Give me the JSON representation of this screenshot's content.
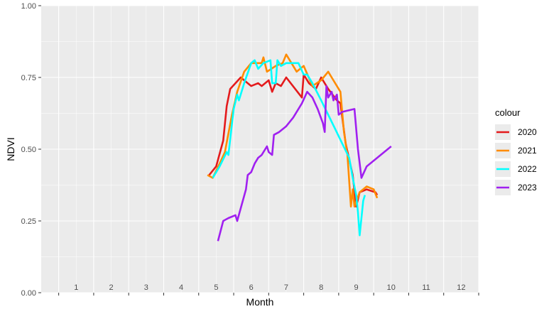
{
  "chart_data": {
    "type": "line",
    "xlabel": "Month",
    "ylabel": "NDVI",
    "xlim": [
      0,
      12.5
    ],
    "ylim": [
      0,
      1
    ],
    "x_ticks": [
      "1",
      "2",
      "3",
      "4",
      "5",
      "6",
      "7",
      "8",
      "9",
      "10",
      "11",
      "12"
    ],
    "y_ticks": [
      "0.00",
      "0.25",
      "0.50",
      "0.75",
      "1.00"
    ],
    "grid": true,
    "panel_background": "#EBEBEB",
    "grid_color": "#FFFFFF",
    "legend": {
      "title": "colour",
      "position": "right"
    },
    "series": [
      {
        "name": "2020",
        "color": "#E41A1C",
        "points": [
          [
            4.8,
            0.41
          ],
          [
            5.0,
            0.44
          ],
          [
            5.2,
            0.53
          ],
          [
            5.3,
            0.65
          ],
          [
            5.4,
            0.71
          ],
          [
            5.7,
            0.75
          ],
          [
            6.0,
            0.72
          ],
          [
            6.2,
            0.73
          ],
          [
            6.3,
            0.72
          ],
          [
            6.5,
            0.74
          ],
          [
            6.6,
            0.7
          ],
          [
            6.7,
            0.73
          ],
          [
            6.85,
            0.72
          ],
          [
            7.0,
            0.75
          ],
          [
            7.45,
            0.68
          ],
          [
            7.5,
            0.76
          ],
          [
            7.65,
            0.73
          ],
          [
            7.85,
            0.71
          ],
          [
            8.0,
            0.75
          ],
          [
            8.2,
            0.71
          ],
          [
            8.45,
            0.67
          ],
          [
            8.55,
            0.66
          ],
          [
            8.7,
            0.52
          ],
          [
            8.9,
            0.41
          ],
          [
            9.0,
            0.3
          ],
          [
            9.1,
            0.35
          ],
          [
            9.3,
            0.36
          ],
          [
            9.55,
            0.35
          ],
          [
            9.6,
            0.34
          ]
        ]
      },
      {
        "name": "2021",
        "color": "#FF8C00",
        "points": [
          [
            4.75,
            0.41
          ],
          [
            4.9,
            0.4
          ],
          [
            5.1,
            0.45
          ],
          [
            5.25,
            0.49
          ],
          [
            5.45,
            0.62
          ],
          [
            5.6,
            0.7
          ],
          [
            5.8,
            0.77
          ],
          [
            6.0,
            0.8
          ],
          [
            6.3,
            0.8
          ],
          [
            6.35,
            0.82
          ],
          [
            6.45,
            0.77
          ],
          [
            6.7,
            0.79
          ],
          [
            6.9,
            0.8
          ],
          [
            7.0,
            0.83
          ],
          [
            7.15,
            0.8
          ],
          [
            7.3,
            0.77
          ],
          [
            7.5,
            0.79
          ],
          [
            7.75,
            0.72
          ],
          [
            8.0,
            0.74
          ],
          [
            8.2,
            0.77
          ],
          [
            8.3,
            0.75
          ],
          [
            8.55,
            0.7
          ],
          [
            8.65,
            0.56
          ],
          [
            8.75,
            0.48
          ],
          [
            8.85,
            0.3
          ],
          [
            8.9,
            0.36
          ],
          [
            8.95,
            0.3
          ],
          [
            9.1,
            0.35
          ],
          [
            9.3,
            0.37
          ],
          [
            9.5,
            0.36
          ],
          [
            9.6,
            0.33
          ]
        ]
      },
      {
        "name": "2022",
        "color": "#00FFFF",
        "points": [
          [
            4.9,
            0.4
          ],
          [
            5.1,
            0.44
          ],
          [
            5.3,
            0.49
          ],
          [
            5.35,
            0.48
          ],
          [
            5.5,
            0.64
          ],
          [
            5.6,
            0.69
          ],
          [
            5.65,
            0.67
          ],
          [
            5.8,
            0.73
          ],
          [
            6.0,
            0.8
          ],
          [
            6.1,
            0.81
          ],
          [
            6.2,
            0.78
          ],
          [
            6.35,
            0.8
          ],
          [
            6.55,
            0.81
          ],
          [
            6.6,
            0.73
          ],
          [
            6.7,
            0.73
          ],
          [
            6.75,
            0.81
          ],
          [
            6.85,
            0.79
          ],
          [
            7.0,
            0.8
          ],
          [
            7.2,
            0.8
          ],
          [
            7.35,
            0.8
          ],
          [
            7.5,
            0.76
          ],
          [
            7.6,
            0.76
          ],
          [
            7.75,
            0.73
          ],
          [
            8.0,
            0.67
          ],
          [
            8.2,
            0.62
          ],
          [
            8.4,
            0.57
          ],
          [
            8.6,
            0.52
          ],
          [
            8.8,
            0.47
          ],
          [
            8.9,
            0.4
          ],
          [
            9.0,
            0.34
          ],
          [
            9.05,
            0.28
          ],
          [
            9.1,
            0.2
          ],
          [
            9.2,
            0.32
          ],
          [
            9.25,
            0.34
          ]
        ]
      },
      {
        "name": "2023",
        "color": "#A020F0",
        "points": [
          [
            5.05,
            0.18
          ],
          [
            5.2,
            0.25
          ],
          [
            5.35,
            0.26
          ],
          [
            5.55,
            0.27
          ],
          [
            5.6,
            0.25
          ],
          [
            5.85,
            0.36
          ],
          [
            5.9,
            0.41
          ],
          [
            6.0,
            0.42
          ],
          [
            6.1,
            0.45
          ],
          [
            6.2,
            0.47
          ],
          [
            6.3,
            0.48
          ],
          [
            6.45,
            0.51
          ],
          [
            6.5,
            0.49
          ],
          [
            6.6,
            0.48
          ],
          [
            6.65,
            0.55
          ],
          [
            6.8,
            0.56
          ],
          [
            7.0,
            0.58
          ],
          [
            7.2,
            0.61
          ],
          [
            7.45,
            0.66
          ],
          [
            7.6,
            0.7
          ],
          [
            7.75,
            0.68
          ],
          [
            7.9,
            0.64
          ],
          [
            8.05,
            0.59
          ],
          [
            8.1,
            0.56
          ],
          [
            8.15,
            0.72
          ],
          [
            8.2,
            0.68
          ],
          [
            8.3,
            0.7
          ],
          [
            8.35,
            0.67
          ],
          [
            8.45,
            0.69
          ],
          [
            8.5,
            0.62
          ],
          [
            8.6,
            0.63
          ],
          [
            8.95,
            0.64
          ],
          [
            9.05,
            0.5
          ],
          [
            9.15,
            0.4
          ],
          [
            9.3,
            0.44
          ],
          [
            9.7,
            0.48
          ],
          [
            10.0,
            0.51
          ]
        ]
      }
    ]
  }
}
